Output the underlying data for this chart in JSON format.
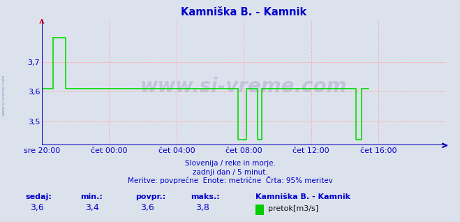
{
  "title": "Kamniška B. - Kamnik",
  "bg_color": "#dce2ec",
  "plot_bg_color": "#dce2ec",
  "line_color": "#00dd00",
  "axis_color": "#0000bb",
  "grid_color_major": "#ffaaaa",
  "grid_color_minor": "#ddddff",
  "title_color": "#0000cc",
  "text_color": "#0000cc",
  "ylim": [
    3.42,
    3.84
  ],
  "yticks": [
    3.5,
    3.6,
    3.7
  ],
  "xtick_labels": [
    "sre 20:00",
    "čet 00:00",
    "čet 04:00",
    "čet 08:00",
    "čet 12:00",
    "čet 16:00"
  ],
  "xtick_positions": [
    0,
    48,
    96,
    144,
    192,
    240
  ],
  "total_points": 288,
  "watermark": "www.si-vreme.com",
  "sub_text1": "Slovenija / reke in morje.",
  "sub_text2": "zadnji dan / 5 minut.",
  "sub_text3": "Meritve: povprečne  Enote: metrične  Črta: 95% meritev",
  "footer_labels": [
    "sedaj:",
    "min.:",
    "povpr.:",
    "maks.:"
  ],
  "footer_values": [
    "3,6",
    "3,4",
    "3,6",
    "3,8"
  ],
  "legend_label": "pretok[m3/s]",
  "legend_color": "#00cc00",
  "station_label": "Kamniška B. - Kamnik",
  "data_y": [
    3.61,
    3.61,
    3.61,
    3.61,
    3.61,
    3.61,
    3.61,
    3.61,
    3.78,
    3.78,
    3.78,
    3.78,
    3.78,
    3.78,
    3.78,
    3.78,
    3.78,
    3.61,
    3.61,
    3.61,
    3.61,
    3.61,
    3.61,
    3.61,
    3.61,
    3.61,
    3.61,
    3.61,
    3.61,
    3.61,
    3.61,
    3.61,
    3.61,
    3.61,
    3.61,
    3.61,
    3.61,
    3.61,
    3.61,
    3.61,
    3.61,
    3.61,
    3.61,
    3.61,
    3.61,
    3.61,
    3.61,
    3.61,
    3.61,
    3.61,
    3.61,
    3.61,
    3.61,
    3.61,
    3.61,
    3.61,
    3.61,
    3.61,
    3.61,
    3.61,
    3.61,
    3.61,
    3.61,
    3.61,
    3.61,
    3.61,
    3.61,
    3.61,
    3.61,
    3.61,
    3.61,
    3.61,
    3.61,
    3.61,
    3.61,
    3.61,
    3.61,
    3.61,
    3.61,
    3.61,
    3.61,
    3.61,
    3.61,
    3.61,
    3.61,
    3.61,
    3.61,
    3.61,
    3.61,
    3.61,
    3.61,
    3.61,
    3.61,
    3.61,
    3.61,
    3.61,
    3.61,
    3.61,
    3.61,
    3.61,
    3.61,
    3.61,
    3.61,
    3.61,
    3.61,
    3.61,
    3.61,
    3.61,
    3.61,
    3.61,
    3.61,
    3.61,
    3.61,
    3.61,
    3.61,
    3.61,
    3.61,
    3.61,
    3.61,
    3.61,
    3.61,
    3.61,
    3.61,
    3.61,
    3.61,
    3.61,
    3.61,
    3.61,
    3.61,
    3.61,
    3.61,
    3.61,
    3.61,
    3.61,
    3.61,
    3.61,
    3.61,
    3.61,
    3.61,
    3.61,
    3.44,
    3.44,
    3.44,
    3.44,
    3.44,
    3.44,
    3.61,
    3.61,
    3.61,
    3.61,
    3.61,
    3.61,
    3.61,
    3.61,
    3.44,
    3.44,
    3.44,
    3.61,
    3.61,
    3.61,
    3.61,
    3.61,
    3.61,
    3.61,
    3.61,
    3.61,
    3.61,
    3.61,
    3.61,
    3.61,
    3.61,
    3.61,
    3.61,
    3.61,
    3.61,
    3.61,
    3.61,
    3.61,
    3.61,
    3.61,
    3.61,
    3.61,
    3.61,
    3.61,
    3.61,
    3.61,
    3.61,
    3.61,
    3.61,
    3.61,
    3.61,
    3.61,
    3.61,
    3.61,
    3.61,
    3.61,
    3.61,
    3.61,
    3.61,
    3.61,
    3.61,
    3.61,
    3.61,
    3.61,
    3.61,
    3.61,
    3.61,
    3.61,
    3.61,
    3.61,
    3.61,
    3.61,
    3.61,
    3.61,
    3.61,
    3.61,
    3.61,
    3.61,
    3.61,
    3.61,
    3.61,
    3.61,
    3.61,
    3.61,
    3.44,
    3.44,
    3.44,
    3.44,
    3.61,
    3.61,
    3.61,
    3.61,
    3.61,
    3.61
  ]
}
